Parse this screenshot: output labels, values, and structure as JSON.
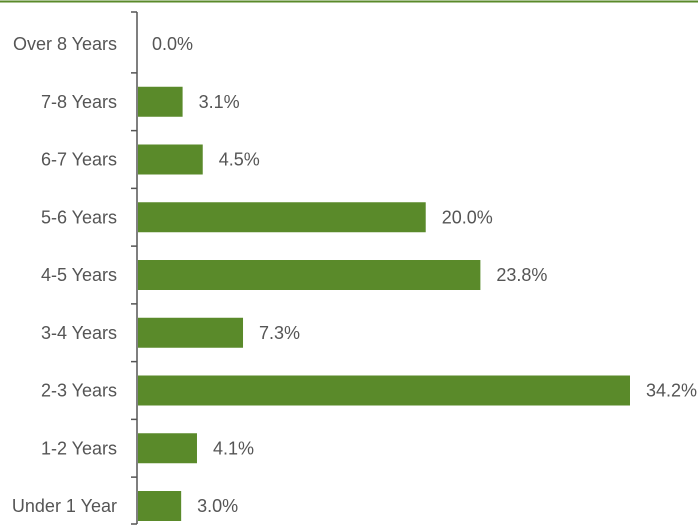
{
  "chart_data": {
    "type": "bar",
    "orientation": "horizontal",
    "categories": [
      "Over 8 Years",
      "7-8 Years",
      "6-7 Years",
      "5-6 Years",
      "4-5 Years",
      "3-4 Years",
      "2-3 Years",
      "1-2 Years",
      "Under 1 Year"
    ],
    "values": [
      0.0,
      3.1,
      4.5,
      20.0,
      23.8,
      7.3,
      34.2,
      4.1,
      3.0
    ],
    "value_labels": [
      "0.0%",
      "3.1%",
      "4.5%",
      "20.0%",
      "23.8%",
      "7.3%",
      "34.2%",
      "4.1%",
      "3.0%"
    ],
    "unit": "%",
    "xlim": [
      0,
      34.2
    ],
    "grid": false,
    "legend": "none",
    "colors": {
      "bar": "#5a8a2a",
      "top_rule": "#5a8a2a",
      "axis": "#555555",
      "text": "#555555"
    }
  }
}
